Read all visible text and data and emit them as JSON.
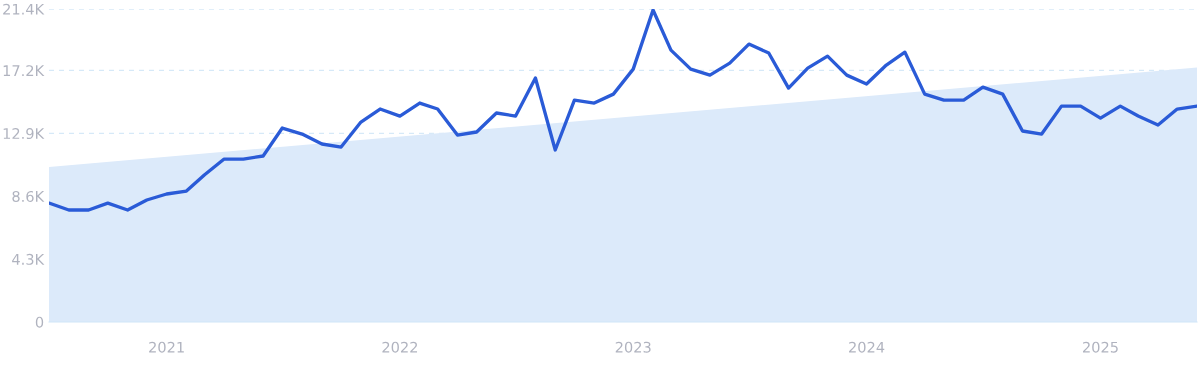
{
  "chart_data": {
    "type": "line",
    "x": [
      "2020-07",
      "2020-08",
      "2020-09",
      "2020-10",
      "2020-11",
      "2020-12",
      "2021-01",
      "2021-02",
      "2021-03",
      "2021-04",
      "2021-05",
      "2021-06",
      "2021-07",
      "2021-08",
      "2021-09",
      "2021-10",
      "2021-11",
      "2021-12",
      "2022-01",
      "2022-02",
      "2022-03",
      "2022-04",
      "2022-05",
      "2022-06",
      "2022-07",
      "2022-08",
      "2022-09",
      "2022-10",
      "2022-11",
      "2022-12",
      "2023-01",
      "2023-02",
      "2023-03",
      "2023-04",
      "2023-05",
      "2023-06",
      "2023-07",
      "2023-08",
      "2023-09",
      "2023-10",
      "2023-11",
      "2023-12",
      "2024-01",
      "2024-02",
      "2024-03",
      "2024-04",
      "2024-05",
      "2024-06",
      "2024-07",
      "2024-08",
      "2024-09",
      "2024-10",
      "2024-11",
      "2024-12",
      "2025-01",
      "2025-02",
      "2025-03",
      "2025-04",
      "2025-05",
      "2025-06"
    ],
    "series": [
      {
        "type": "area",
        "color": "#dceafa",
        "x": [
          "2020-07",
          "2025-06"
        ],
        "values": [
          10600,
          17400
        ]
      },
      {
        "color": "#2a5bd7",
        "values": [
          8130,
          7660,
          7660,
          8130,
          7660,
          8340,
          8750,
          8950,
          10050,
          11140,
          11140,
          11350,
          13260,
          12850,
          12170,
          11960,
          13670,
          14560,
          14080,
          14970,
          14560,
          12780,
          12990,
          14290,
          14080,
          16680,
          11760,
          15170,
          14970,
          15580,
          17290,
          21330,
          18590,
          17290,
          16880,
          17700,
          19000,
          18390,
          15990,
          17360,
          18180,
          16880,
          16270,
          17570,
          18450,
          15580,
          15170,
          15170,
          16060,
          15580,
          13060,
          12850,
          14760,
          14760,
          13940,
          14760,
          14080,
          13470,
          14560,
          14760
        ]
      }
    ],
    "xlim": [
      "2020-07",
      "2025-06"
    ],
    "xticks": [
      "2021",
      "2022",
      "2023",
      "2024",
      "2025"
    ],
    "ylim": [
      0,
      21400
    ],
    "yticks": [
      {
        "value": 0,
        "label": "0"
      },
      {
        "value": 4300,
        "label": "4.3K"
      },
      {
        "value": 8600,
        "label": "8.6K"
      },
      {
        "value": 12900,
        "label": "12.9K"
      },
      {
        "value": 17200,
        "label": "17.2K"
      },
      {
        "value": 21400,
        "label": "21.4K"
      }
    ],
    "grid": "y",
    "line_style": "solid",
    "marker": "none"
  }
}
